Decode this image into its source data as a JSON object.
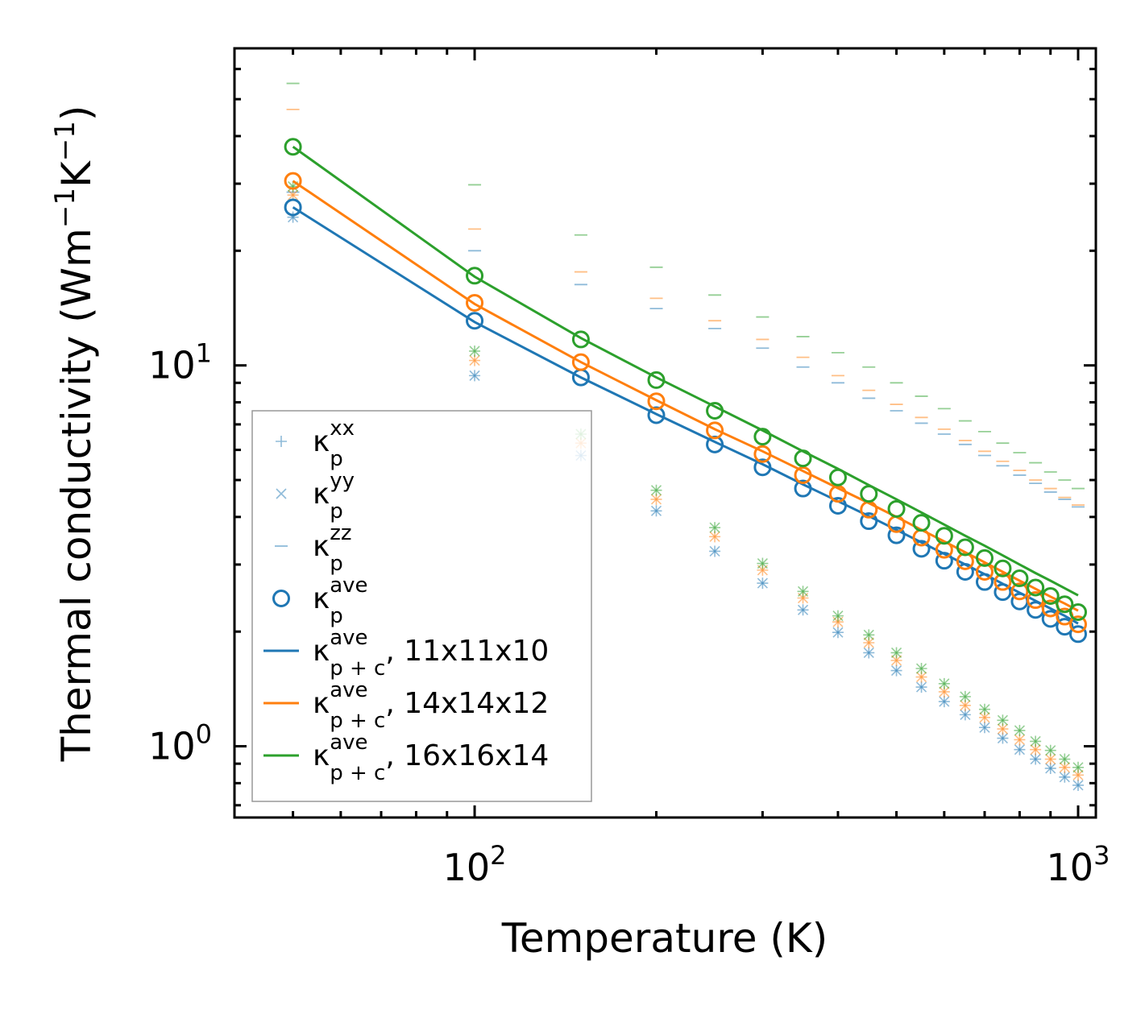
{
  "chart_data": {
    "type": "scatter",
    "title": "",
    "xlabel": "Temperature (K)",
    "ylabel_main": "Thermal conductivity (Wm",
    "ylabel_sup1": "−1",
    "ylabel_mid": "K",
    "ylabel_sup2": "−1",
    "ylabel_end": ")",
    "xscale": "log",
    "yscale": "log",
    "xlim": [
      40,
      1070
    ],
    "ylim": [
      0.65,
      68
    ],
    "xticks": [
      {
        "value": 100,
        "base": "10",
        "exp": "2"
      },
      {
        "value": 1000,
        "base": "10",
        "exp": "3"
      }
    ],
    "yticks": [
      {
        "value": 1,
        "base": "10",
        "exp": "0"
      },
      {
        "value": 10,
        "base": "10",
        "exp": "1"
      }
    ],
    "colors": {
      "s1": "#1f77b4",
      "s2": "#ff7f0e",
      "s3": "#2ca02c"
    },
    "x": [
      50,
      100,
      150,
      200,
      250,
      300,
      350,
      400,
      450,
      500,
      550,
      600,
      650,
      700,
      750,
      800,
      850,
      900,
      950,
      1000
    ],
    "series": [
      {
        "name": "11x11x10",
        "color": "#1f77b4",
        "kappa_xx": [
          24.5,
          9.4,
          5.8,
          4.15,
          3.25,
          2.68,
          2.28,
          1.99,
          1.76,
          1.58,
          1.43,
          1.31,
          1.21,
          1.12,
          1.05,
          0.98,
          0.925,
          0.875,
          0.83,
          0.79
        ],
        "kappa_yy": [
          24.5,
          9.4,
          5.8,
          4.15,
          3.25,
          2.68,
          2.28,
          1.99,
          1.76,
          1.58,
          1.43,
          1.31,
          1.21,
          1.12,
          1.05,
          0.98,
          0.925,
          0.875,
          0.83,
          0.79
        ],
        "kappa_zz": [
          28.5,
          20.0,
          16.3,
          14.1,
          12.5,
          11.1,
          9.9,
          9.0,
          8.2,
          7.6,
          7.05,
          6.6,
          6.2,
          5.8,
          5.45,
          5.15,
          4.9,
          4.65,
          4.45,
          4.25
        ],
        "kappa_ave": [
          26.0,
          13.1,
          9.3,
          7.4,
          6.2,
          5.4,
          4.75,
          4.28,
          3.9,
          3.58,
          3.3,
          3.07,
          2.87,
          2.7,
          2.54,
          2.4,
          2.28,
          2.16,
          2.06,
          1.97
        ],
        "kappa_pc": [
          26.0,
          13.0,
          9.3,
          7.45,
          6.3,
          5.5,
          4.87,
          4.4,
          4.02,
          3.7,
          3.43,
          3.2,
          3.0,
          2.83,
          2.67,
          2.53,
          2.41,
          2.3,
          2.2,
          2.1
        ]
      },
      {
        "name": "14x14x12",
        "color": "#ff7f0e",
        "kappa_xx": [
          28.0,
          10.3,
          6.25,
          4.45,
          3.55,
          2.9,
          2.45,
          2.12,
          1.87,
          1.68,
          1.52,
          1.39,
          1.28,
          1.19,
          1.11,
          1.04,
          0.98,
          0.925,
          0.88,
          0.84
        ],
        "kappa_yy": [
          28.0,
          10.3,
          6.25,
          4.45,
          3.55,
          2.9,
          2.45,
          2.12,
          1.87,
          1.68,
          1.52,
          1.39,
          1.28,
          1.19,
          1.11,
          1.04,
          0.98,
          0.925,
          0.88,
          0.84
        ],
        "kappa_zz": [
          47.0,
          22.8,
          17.6,
          15.0,
          13.1,
          11.7,
          10.5,
          9.4,
          8.6,
          7.9,
          7.3,
          6.8,
          6.35,
          5.95,
          5.6,
          5.3,
          5.0,
          4.75,
          4.5,
          4.3
        ],
        "kappa_ave": [
          30.5,
          14.6,
          10.2,
          8.05,
          6.75,
          5.85,
          5.15,
          4.6,
          4.18,
          3.83,
          3.53,
          3.28,
          3.06,
          2.87,
          2.7,
          2.55,
          2.42,
          2.3,
          2.19,
          2.09
        ],
        "kappa_pc": [
          30.5,
          14.5,
          10.2,
          8.1,
          6.8,
          5.95,
          5.28,
          4.76,
          4.35,
          4.0,
          3.7,
          3.45,
          3.23,
          3.04,
          2.87,
          2.72,
          2.59,
          2.47,
          2.37,
          2.27
        ]
      },
      {
        "name": "16x16x14",
        "color": "#2ca02c",
        "kappa_xx": [
          29.5,
          10.9,
          6.6,
          4.7,
          3.75,
          3.02,
          2.55,
          2.2,
          1.96,
          1.76,
          1.6,
          1.46,
          1.35,
          1.25,
          1.17,
          1.1,
          1.03,
          0.975,
          0.925,
          0.88
        ],
        "kappa_yy": [
          29.5,
          10.9,
          6.6,
          4.7,
          3.75,
          3.02,
          2.55,
          2.2,
          1.96,
          1.76,
          1.6,
          1.46,
          1.35,
          1.25,
          1.17,
          1.1,
          1.03,
          0.975,
          0.925,
          0.88
        ],
        "kappa_zz": [
          55.0,
          29.8,
          22.0,
          18.1,
          15.3,
          13.4,
          11.9,
          10.8,
          9.9,
          9.0,
          8.3,
          7.7,
          7.15,
          6.7,
          6.25,
          5.9,
          5.55,
          5.25,
          5.0,
          4.75
        ],
        "kappa_ave": [
          37.5,
          17.2,
          11.7,
          9.15,
          7.6,
          6.5,
          5.7,
          5.08,
          4.6,
          4.2,
          3.86,
          3.57,
          3.33,
          3.12,
          2.93,
          2.76,
          2.61,
          2.48,
          2.36,
          2.25
        ],
        "kappa_pc": [
          37.5,
          17.1,
          11.8,
          9.3,
          7.8,
          6.75,
          5.95,
          5.35,
          4.85,
          4.45,
          4.11,
          3.82,
          3.57,
          3.36,
          3.17,
          3.0,
          2.85,
          2.72,
          2.6,
          2.49
        ]
      }
    ],
    "legend": {
      "location": "lower-left",
      "entries": [
        {
          "marker": "plus",
          "color": "#1f77b4",
          "base": "κ",
          "sub": "p",
          "sup": "xx",
          "suffix": ""
        },
        {
          "marker": "x",
          "color": "#1f77b4",
          "base": "κ",
          "sub": "p",
          "sup": "yy",
          "suffix": ""
        },
        {
          "marker": "dash",
          "color": "#1f77b4",
          "base": "κ",
          "sub": "p",
          "sup": "zz",
          "suffix": ""
        },
        {
          "marker": "circle",
          "color": "#1f77b4",
          "base": "κ",
          "sub": "p",
          "sup": "ave",
          "suffix": ""
        },
        {
          "marker": "line",
          "color": "#1f77b4",
          "base": "κ",
          "sub": "p + c",
          "sup": "ave",
          "suffix": ", 11x11x10"
        },
        {
          "marker": "line",
          "color": "#ff7f0e",
          "base": "κ",
          "sub": "p + c",
          "sup": "ave",
          "suffix": ", 14x14x12"
        },
        {
          "marker": "line",
          "color": "#2ca02c",
          "base": "κ",
          "sub": "p + c",
          "sup": "ave",
          "suffix": ", 16x16x14"
        }
      ]
    }
  }
}
